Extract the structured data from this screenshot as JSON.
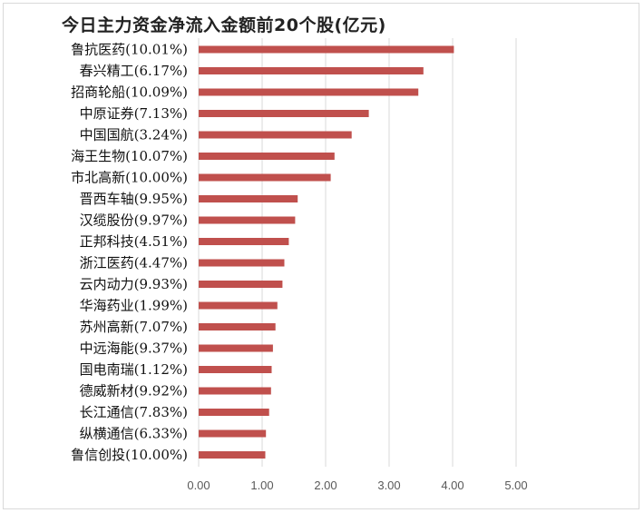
{
  "chart_data": {
    "type": "bar",
    "orientation": "horizontal",
    "title": "今日主力资金净流入金额前20个股(亿元)",
    "categories": [
      "鲁抗医药(10.01%)",
      "春兴精工(6.17%)",
      "招商轮船(10.09%)",
      "中原证券(7.13%)",
      "中国国航(3.24%)",
      "海王生物(10.07%)",
      "市北高新(10.00%)",
      "晋西车轴(9.95%)",
      "汉缆股份(9.97%)",
      "正邦科技(4.51%)",
      "浙江医药(4.47%)",
      "云内动力(9.93%)",
      "华海药业(1.99%)",
      "苏州高新(7.07%)",
      "中远海能(9.37%)",
      "国电南瑞(1.12%)",
      "德威新材(9.92%)",
      "长江通信(7.83%)",
      "纵横通信(6.33%)",
      "鲁信创投(10.00%)"
    ],
    "values": [
      4.02,
      3.54,
      3.46,
      2.68,
      2.41,
      2.14,
      2.08,
      1.56,
      1.52,
      1.42,
      1.35,
      1.32,
      1.24,
      1.21,
      1.17,
      1.15,
      1.14,
      1.11,
      1.06,
      1.05
    ],
    "xlim": [
      0,
      5
    ],
    "xticks": [
      "0.00",
      "1.00",
      "2.00",
      "3.00",
      "4.00",
      "5.00"
    ],
    "grid": true,
    "bar_color": "#c0504d",
    "grid_color": "#d9d9d9"
  }
}
